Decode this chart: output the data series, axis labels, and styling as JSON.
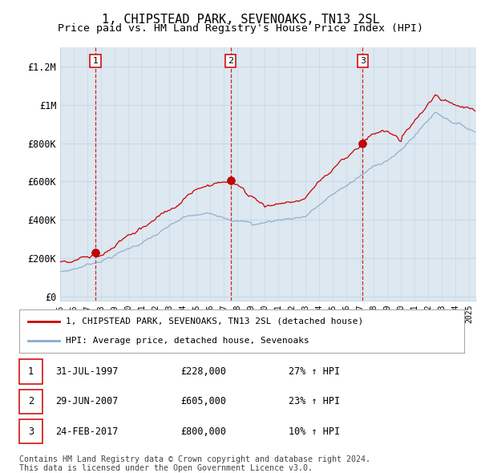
{
  "title": "1, CHIPSTEAD PARK, SEVENOAKS, TN13 2SL",
  "subtitle": "Price paid vs. HM Land Registry's House Price Index (HPI)",
  "title_fontsize": 11,
  "subtitle_fontsize": 9.5,
  "ylabel_ticks": [
    "£0",
    "£200K",
    "£400K",
    "£600K",
    "£800K",
    "£1M",
    "£1.2M"
  ],
  "ytick_vals": [
    0,
    200000,
    400000,
    600000,
    800000,
    1000000,
    1200000
  ],
  "ylim": [
    -20000,
    1300000
  ],
  "red_line_color": "#cc0000",
  "blue_line_color": "#88aacc",
  "vline_color": "#cc0000",
  "grid_color": "#c8d8e8",
  "plot_bg_color": "#dde8f0",
  "background_color": "#ffffff",
  "legend_label_red": "1, CHIPSTEAD PARK, SEVENOAKS, TN13 2SL (detached house)",
  "legend_label_blue": "HPI: Average price, detached house, Sevenoaks",
  "footer": "Contains HM Land Registry data © Crown copyright and database right 2024.\nThis data is licensed under the Open Government Licence v3.0.",
  "x_start_year": 1995,
  "x_end_year": 2025
}
